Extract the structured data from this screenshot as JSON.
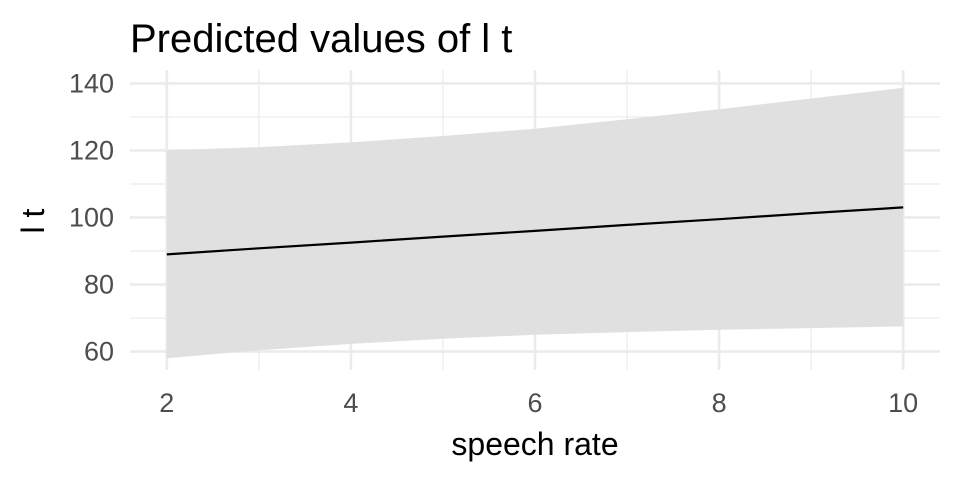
{
  "chart_data": {
    "type": "line",
    "title": "Predicted values of l t",
    "xlabel": "speech rate",
    "ylabel": "l t",
    "xlim": [
      1.6,
      10.4
    ],
    "ylim": [
      54.5,
      144
    ],
    "x_ticks": [
      2,
      4,
      6,
      8,
      10
    ],
    "y_ticks": [
      60,
      80,
      100,
      120,
      140
    ],
    "grid": true,
    "series": [
      {
        "x": [
          2,
          3,
          4,
          5,
          6,
          7,
          8,
          9,
          10
        ],
        "values": [
          89,
          90.8,
          92.5,
          94.3,
          96,
          97.8,
          99.5,
          101.3,
          103
        ],
        "ci_low": [
          58,
          60.4,
          62.3,
          63.8,
          65,
          65.8,
          66.5,
          67,
          67.5
        ],
        "ci_high": [
          120,
          121,
          122.4,
          124.3,
          126.5,
          129.3,
          132.3,
          135.5,
          138.7
        ]
      }
    ],
    "colors": {
      "line": "#000000",
      "band": "#e0e0e0",
      "grid": "#ebebeb",
      "tick_text": "#4d4d4d"
    }
  }
}
